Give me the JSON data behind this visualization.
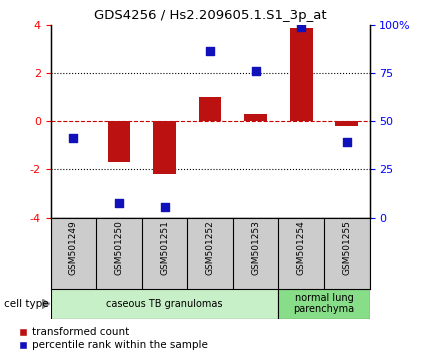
{
  "title": "GDS4256 / Hs2.209605.1.S1_3p_at",
  "samples": [
    "GSM501249",
    "GSM501250",
    "GSM501251",
    "GSM501252",
    "GSM501253",
    "GSM501254",
    "GSM501255"
  ],
  "red_values": [
    0.0,
    -1.7,
    -2.2,
    1.0,
    0.3,
    3.85,
    -0.2
  ],
  "blue_values": [
    -0.7,
    -3.4,
    -3.55,
    2.9,
    2.1,
    3.9,
    -0.85
  ],
  "ylim_left": [
    -4,
    4
  ],
  "ylim_right": [
    0,
    100
  ],
  "left_yticks": [
    -4,
    -2,
    0,
    2,
    4
  ],
  "right_yticks": [
    0,
    25,
    50,
    75,
    100
  ],
  "right_yticklabels": [
    "0",
    "25",
    "50",
    "75",
    "100%"
  ],
  "bar_color": "#bb1111",
  "dot_color": "#1111bb",
  "groups": [
    {
      "label": "caseous TB granulomas",
      "samples": [
        0,
        1,
        2,
        3,
        4
      ],
      "color": "#c8f0c8"
    },
    {
      "label": "normal lung\nparenchyma",
      "samples": [
        5,
        6
      ],
      "color": "#88dd88"
    }
  ],
  "cell_type_label": "cell type",
  "legend_red": "transformed count",
  "legend_blue": "percentile rank within the sample",
  "bar_width": 0.5,
  "dot_size": 30,
  "background_color": "#ffffff",
  "sample_box_color": "#cccccc",
  "zero_line_color": "#cc0000",
  "dotted_line_color": "#000000"
}
